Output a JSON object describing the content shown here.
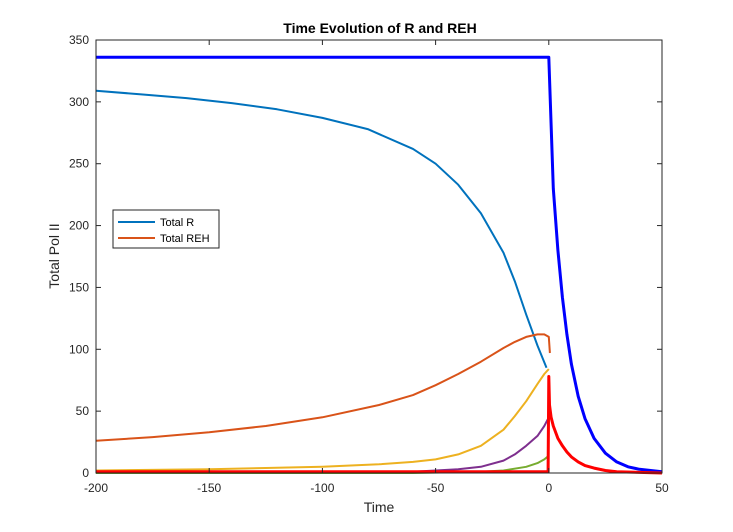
{
  "chart_data": {
    "type": "line",
    "title": "Time Evolution of R and REH",
    "xlabel": "Time",
    "ylabel": "Total Pol II",
    "xlim": [
      -200,
      50
    ],
    "ylim": [
      0,
      350
    ],
    "xticks": [
      -200,
      -150,
      -100,
      -50,
      0,
      50
    ],
    "yticks": [
      0,
      50,
      100,
      150,
      200,
      250,
      300,
      350
    ],
    "grid": false,
    "legend_position": "left",
    "series": [
      {
        "name": "Total R",
        "color": "#0072BD",
        "width": 2,
        "legend": true,
        "x": [
          -200,
          -180,
          -160,
          -140,
          -120,
          -100,
          -80,
          -60,
          -50,
          -40,
          -30,
          -20,
          -15,
          -10,
          -5,
          -1
        ],
        "y": [
          309,
          306,
          303,
          299,
          294,
          287,
          278,
          262,
          250,
          233,
          210,
          178,
          155,
          128,
          103,
          85
        ]
      },
      {
        "name": "Total REH",
        "color": "#D95319",
        "width": 2,
        "legend": true,
        "x": [
          -200,
          -175,
          -150,
          -125,
          -100,
          -75,
          -60,
          -50,
          -40,
          -30,
          -20,
          -15,
          -10,
          -5,
          -2,
          0,
          0.5
        ],
        "y": [
          26,
          29,
          33,
          38,
          45,
          55,
          63,
          71,
          80,
          90,
          101,
          106,
          110,
          112,
          112,
          110,
          97
        ]
      },
      {
        "color": "#EDB120",
        "width": 2,
        "legend": false,
        "x": [
          -200,
          -150,
          -100,
          -75,
          -60,
          -50,
          -40,
          -30,
          -20,
          -15,
          -10,
          -5,
          -2,
          0
        ],
        "y": [
          2,
          3,
          5,
          7,
          9,
          11,
          15,
          22,
          35,
          46,
          58,
          72,
          80,
          84
        ]
      },
      {
        "color": "#7E2F8E",
        "width": 2,
        "legend": false,
        "x": [
          -200,
          -100,
          -60,
          -40,
          -30,
          -20,
          -15,
          -10,
          -5,
          -2,
          0
        ],
        "y": [
          0,
          0,
          1,
          3,
          5,
          10,
          15,
          22,
          30,
          38,
          45
        ]
      },
      {
        "color": "#77AC30",
        "width": 2,
        "legend": false,
        "x": [
          -200,
          -60,
          -30,
          -20,
          -10,
          -5,
          -2,
          0
        ],
        "y": [
          0,
          0,
          1,
          2,
          5,
          8,
          11,
          14
        ]
      },
      {
        "color": "#0000FF",
        "width": 3,
        "legend": false,
        "x": [
          -200,
          -100,
          -1,
          0,
          2,
          4,
          6,
          8,
          10,
          13,
          16,
          20,
          25,
          30,
          35,
          40,
          45,
          50
        ],
        "y": [
          336,
          336,
          336,
          336,
          230,
          180,
          142,
          112,
          88,
          62,
          44,
          28,
          16,
          9,
          5,
          3,
          2,
          1
        ]
      },
      {
        "color": "#FF0000",
        "width": 3,
        "legend": false,
        "x": [
          -200,
          -100,
          -0.3,
          0,
          0.3,
          1,
          2,
          4,
          6,
          8,
          10,
          13,
          16,
          20,
          25,
          30,
          40,
          50
        ],
        "y": [
          1,
          1,
          1,
          78,
          55,
          45,
          38,
          28,
          22,
          17,
          13,
          9,
          6,
          4,
          2,
          1,
          0.5,
          0
        ]
      }
    ]
  }
}
